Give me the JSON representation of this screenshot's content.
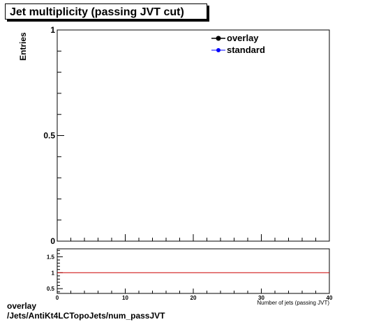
{
  "chart_data": [
    {
      "type": "line",
      "title": "Jet multiplicity (passing JVT cut)",
      "xlabel": "Number of jets (passing JVT)",
      "ylabel": "Entries",
      "xlim": [
        0,
        40
      ],
      "ylim": [
        0,
        1
      ],
      "y_ticks": [
        {
          "value": 0,
          "label": "0"
        },
        {
          "value": 0.5,
          "label": "0.5"
        },
        {
          "value": 1,
          "label": "1"
        }
      ],
      "legend": "top-right",
      "series": [
        {
          "name": "overlay",
          "color": "#000000",
          "values": []
        },
        {
          "name": "standard",
          "color": "#0000ff",
          "values": []
        }
      ]
    },
    {
      "type": "line",
      "xlim": [
        0,
        40
      ],
      "ylim": [
        0.35,
        1.75
      ],
      "x_ticks": [
        {
          "value": 0,
          "label": "0"
        },
        {
          "value": 10,
          "label": "10"
        },
        {
          "value": 20,
          "label": "20"
        },
        {
          "value": 30,
          "label": "30"
        },
        {
          "value": 40,
          "label": "40"
        }
      ],
      "y_ticks": [
        {
          "value": 0.5,
          "label": "0.5"
        },
        {
          "value": 1,
          "label": "1"
        },
        {
          "value": 1.5,
          "label": "1.5"
        }
      ],
      "reference_line": {
        "y": 1,
        "color": "#cc0000"
      }
    }
  ],
  "footer": {
    "line1": "overlay",
    "line2": "/Jets/AntiKt4LCTopoJets/num_passJVT"
  }
}
